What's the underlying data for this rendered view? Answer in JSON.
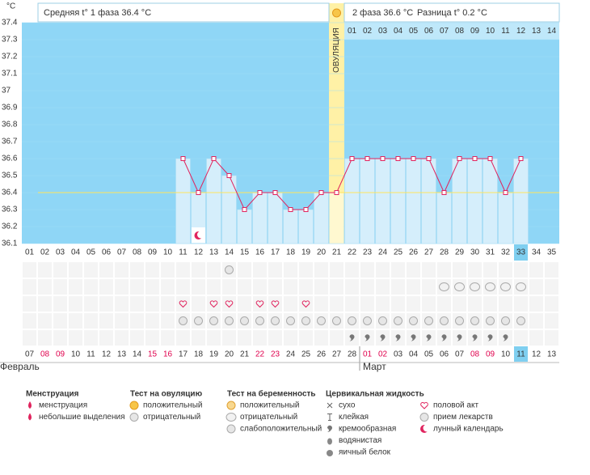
{
  "chart_data": {
    "type": "line",
    "y_unit": "°C",
    "header": {
      "phase1": "Средняя t° 1 фаза 36.4 °C",
      "phase2": "2 фаза 36.6 °C",
      "diff": "Разница t° 0.2 °C"
    },
    "ovulation_label": "ОВУЛЯЦИЯ",
    "ovulation_day": "21",
    "categories": [
      "01",
      "02",
      "03",
      "04",
      "05",
      "06",
      "07",
      "08",
      "09",
      "10",
      "11",
      "12",
      "13",
      "14",
      "15",
      "16",
      "17",
      "18",
      "19",
      "20",
      "21",
      "22",
      "23",
      "24",
      "25",
      "26",
      "27",
      "28",
      "29",
      "30",
      "31",
      "32",
      "33",
      "34",
      "35"
    ],
    "values": [
      null,
      null,
      null,
      null,
      null,
      null,
      null,
      null,
      null,
      null,
      36.6,
      36.4,
      36.6,
      36.5,
      36.3,
      36.4,
      36.4,
      36.3,
      36.3,
      36.4,
      36.4,
      36.6,
      36.6,
      36.6,
      36.6,
      36.6,
      36.6,
      36.4,
      36.6,
      36.6,
      36.6,
      36.4,
      36.6,
      null,
      null
    ],
    "color": "#e0245e",
    "coverline": 36.4,
    "phase2_days": [
      "01",
      "02",
      "03",
      "04",
      "05",
      "06",
      "07",
      "08",
      "09",
      "10",
      "11",
      "12",
      "13",
      "14"
    ],
    "highlight_day": "33",
    "dates": [
      "07",
      "08",
      "09",
      "10",
      "11",
      "12",
      "13",
      "14",
      "15",
      "16",
      "17",
      "18",
      "19",
      "20",
      "21",
      "22",
      "23",
      "24",
      "25",
      "26",
      "27",
      "28",
      "01",
      "02",
      "03",
      "04",
      "05",
      "06",
      "07",
      "08",
      "09",
      "10",
      "11",
      "12",
      "13"
    ],
    "weekend_color": "#e0004d",
    "weekends": [
      1,
      2,
      8,
      9,
      15,
      16,
      22,
      23,
      29,
      30
    ],
    "months": [
      {
        "label": "Февраль",
        "start": 0
      },
      {
        "label": "Март",
        "start": 22
      }
    ],
    "ylim": [
      36.1,
      37.4
    ],
    "yticks": [
      37.4,
      37.3,
      37.2,
      37.1,
      37,
      36.9,
      36.8,
      36.7,
      36.6,
      36.5,
      36.4,
      36.3,
      36.2,
      36.1
    ],
    "legend": [
      {
        "title": "Менструация",
        "items": [
          "менструация",
          "небольшие выделения"
        ]
      },
      {
        "title": "Тест на овуляцию",
        "items": [
          "положительный",
          "отрицательный"
        ]
      },
      {
        "title": "Тест на беременность",
        "items": [
          "положительный",
          "отрицательный",
          "слабоположительный"
        ]
      },
      {
        "title": "Цервикальная жидкость",
        "items": [
          "сухо",
          "клейкая",
          "кремообразная",
          "водянистая",
          "яичный белок"
        ]
      },
      {
        "items": [
          "половой акт",
          "прием лекарств",
          "лунный календарь"
        ]
      }
    ],
    "events": [
      {
        "group": 1,
        "item": 1,
        "days": [
          "14"
        ]
      },
      {
        "group": 2,
        "item": 1,
        "days": [
          "28",
          "29",
          "30",
          "31",
          "32",
          "33"
        ]
      },
      {
        "group": 4,
        "item": 0,
        "days": [
          "11",
          "13",
          "14",
          "16",
          "17",
          "19"
        ]
      },
      {
        "group": 4,
        "item": 1,
        "days": [
          "11",
          "12",
          "13",
          "14",
          "15",
          "16",
          "17",
          "18",
          "19",
          "20",
          "21",
          "22",
          "23",
          "24",
          "25",
          "26",
          "27",
          "28",
          "29",
          "30",
          "31",
          "32",
          "33"
        ]
      },
      {
        "group": 3,
        "item": 2,
        "days": [
          "22",
          "23",
          "24",
          "25",
          "26",
          "27",
          "28",
          "29",
          "30",
          "31",
          "32"
        ]
      }
    ],
    "moon_days": [
      "12"
    ]
  }
}
